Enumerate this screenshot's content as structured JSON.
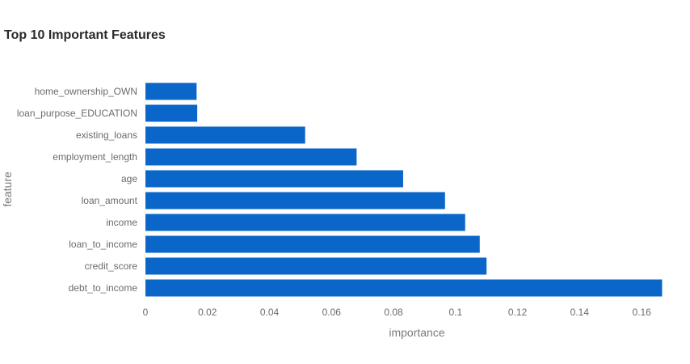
{
  "chart_data": {
    "type": "bar",
    "orientation": "horizontal",
    "title": "Top 10 Important Features",
    "xlabel": "importance",
    "ylabel": "feature",
    "xlim": [
      0,
      0.167
    ],
    "xticks": [
      0,
      0.02,
      0.04,
      0.06,
      0.08,
      0.1,
      0.12,
      0.14,
      0.16
    ],
    "xtick_labels": [
      "0",
      "0.02",
      "0.04",
      "0.06",
      "0.08",
      "0.1",
      "0.12",
      "0.14",
      "0.16"
    ],
    "grid": false,
    "bar_color": "#0a66c9",
    "categories": [
      "home_ownership_OWN",
      "loan_purpose_EDUCATION",
      "existing_loans",
      "employment_length",
      "age",
      "loan_amount",
      "income",
      "loan_to_income",
      "credit_score",
      "debt_to_income"
    ],
    "values": [
      0.0165,
      0.0167,
      0.0515,
      0.0681,
      0.0831,
      0.0966,
      0.1031,
      0.1078,
      0.11,
      0.1666
    ]
  }
}
